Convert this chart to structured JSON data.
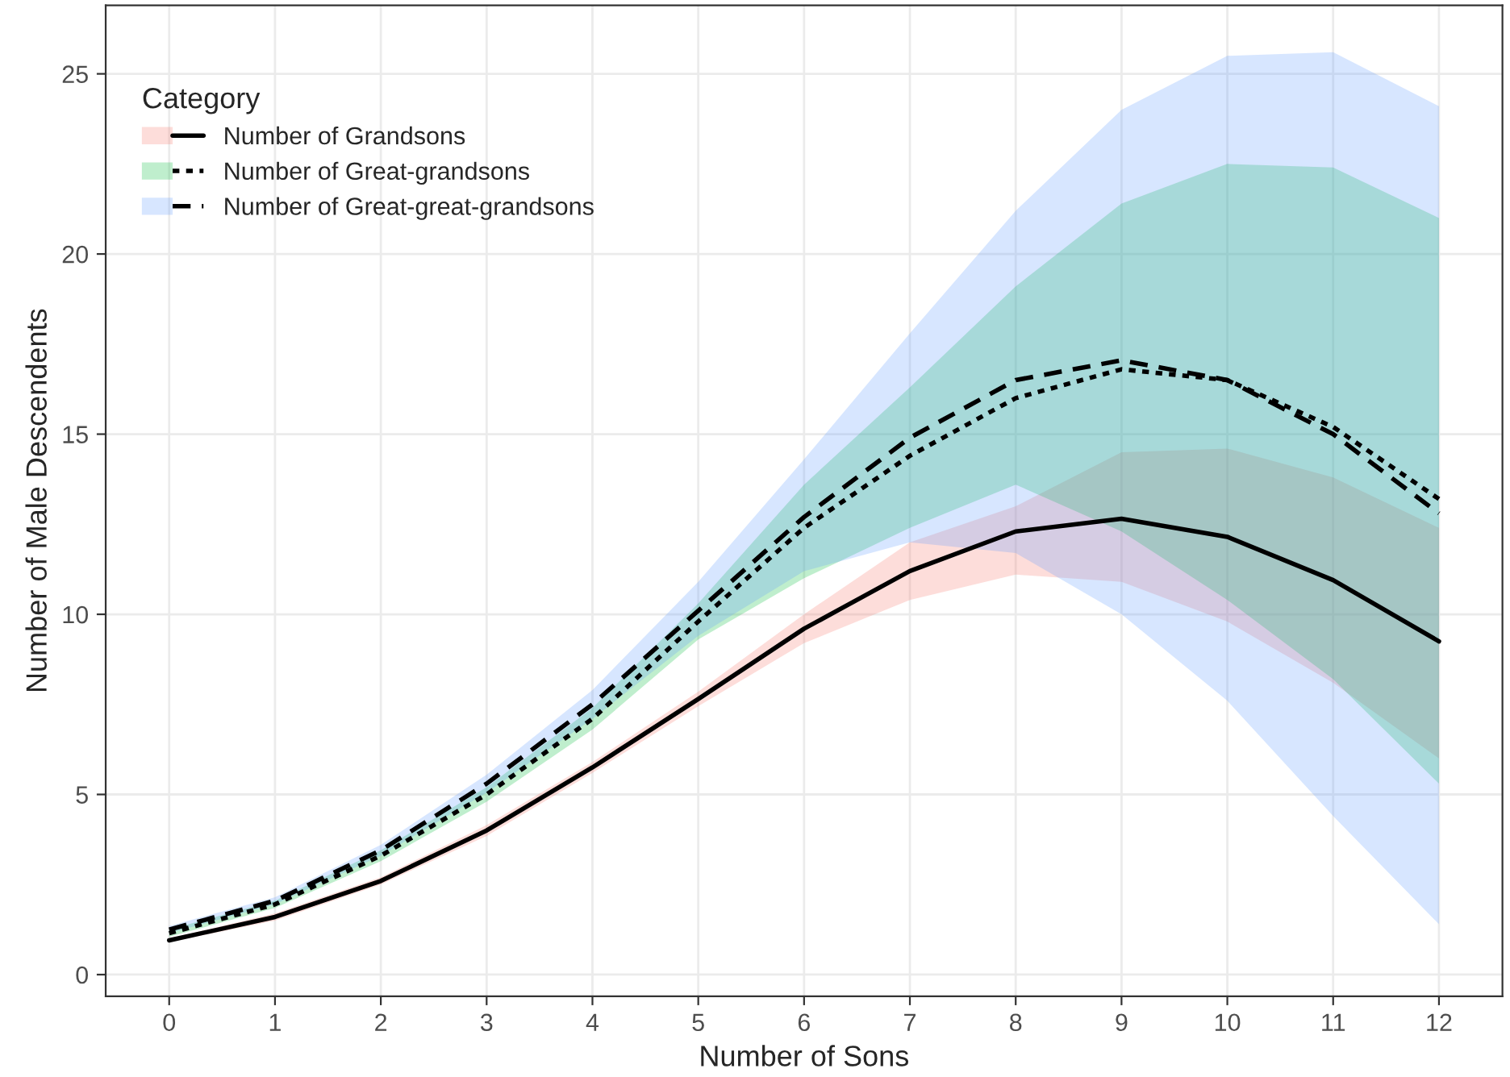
{
  "chart_data": {
    "type": "line",
    "xlabel": "Number of Sons",
    "ylabel": "Number of Male Descendents",
    "legend_title": "Category",
    "legend": "top left",
    "grid": true,
    "colors": [
      "#f8766d",
      "#00ba38",
      "#619cff"
    ],
    "x": [
      0,
      1,
      2,
      3,
      4,
      5,
      6,
      7,
      8,
      9,
      10,
      11,
      12
    ],
    "xlim": [
      -0.6,
      12.6
    ],
    "xticks": [
      0,
      1,
      2,
      3,
      4,
      5,
      6,
      7,
      8,
      9,
      10,
      11,
      12
    ],
    "ylim": [
      -0.6,
      26.9
    ],
    "yticks": [
      0,
      5,
      10,
      15,
      20,
      25
    ],
    "series": [
      {
        "name": "Number of Grandsons",
        "color": "#000000",
        "line_style": "solid",
        "values": [
          0.95,
          1.6,
          2.6,
          4.0,
          5.75,
          7.65,
          9.6,
          11.2,
          12.3,
          12.65,
          12.15,
          10.95,
          9.25
        ],
        "lower": [
          0.9,
          1.5,
          2.5,
          3.85,
          5.6,
          7.45,
          9.2,
          10.4,
          11.1,
          10.9,
          9.8,
          8.1,
          6.0
        ],
        "upper": [
          1.0,
          1.7,
          2.7,
          4.15,
          5.9,
          7.85,
          10.0,
          12.0,
          13.0,
          14.5,
          14.6,
          13.8,
          12.4
        ]
      },
      {
        "name": "Number of Great-grandsons",
        "color": "#000000",
        "line_style": "dotted",
        "values": [
          1.15,
          1.95,
          3.3,
          5.0,
          7.1,
          9.8,
          12.4,
          14.4,
          16.0,
          16.8,
          16.5,
          15.2,
          13.2
        ],
        "lower": [
          1.05,
          1.85,
          3.15,
          4.8,
          6.8,
          9.3,
          11.0,
          12.4,
          13.6,
          12.3,
          10.4,
          8.2,
          5.3
        ],
        "upper": [
          1.25,
          2.05,
          3.45,
          5.2,
          7.4,
          10.3,
          13.6,
          16.3,
          19.1,
          21.4,
          22.5,
          22.4,
          21.0
        ]
      },
      {
        "name": "Number of Great-great-grandsons",
        "color": "#000000",
        "line_style": "dashed",
        "values": [
          1.25,
          2.05,
          3.45,
          5.3,
          7.5,
          10.1,
          12.7,
          14.9,
          16.5,
          17.05,
          16.5,
          15.0,
          12.8
        ],
        "lower": [
          1.15,
          1.95,
          3.3,
          5.05,
          7.1,
          9.4,
          11.2,
          12.0,
          11.7,
          10.0,
          7.6,
          4.4,
          1.4
        ],
        "upper": [
          1.35,
          2.15,
          3.6,
          5.55,
          7.9,
          10.9,
          14.3,
          17.8,
          21.2,
          24.0,
          25.5,
          25.6,
          24.1
        ]
      }
    ]
  }
}
